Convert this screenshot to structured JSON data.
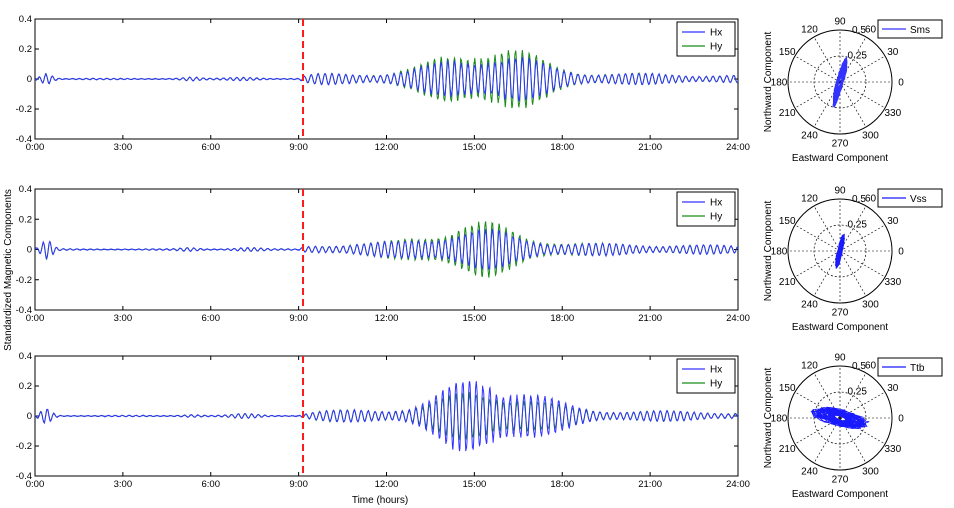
{
  "figure": {
    "ylabel": "Standardized Magnetic Components",
    "xlabel": "Time (hours)"
  },
  "chart_data": [
    {
      "type": "line",
      "panel": "time-series-1",
      "x_ticks": [
        "0:00",
        "3:00",
        "6:00",
        "9:00",
        "12:00",
        "15:00",
        "18:00",
        "21:00",
        "24:00"
      ],
      "xlim": [
        0,
        24
      ],
      "ylim": [
        -0.4,
        0.4
      ],
      "y_ticks": [
        "0.4",
        "0.2",
        "0",
        "-0.2",
        "-0.4"
      ],
      "legend": "top-right",
      "marker_hour": 9.15,
      "marker_color": "#ff1a1a",
      "series": [
        {
          "name": "Hx",
          "color": "#3333ff",
          "peak_amplitude": 0.15,
          "peak_hour": 15.5
        },
        {
          "name": "Hy",
          "color": "#1a8c1a",
          "peak_amplitude": 0.22,
          "peak_hour": 15.5
        }
      ]
    },
    {
      "type": "line",
      "panel": "time-series-2",
      "x_ticks": [
        "0:00",
        "3:00",
        "6:00",
        "9:00",
        "12:00",
        "15:00",
        "18:00",
        "21:00",
        "24:00"
      ],
      "xlim": [
        0,
        24
      ],
      "ylim": [
        -0.4,
        0.4
      ],
      "y_ticks": [
        "0.4",
        "0.2",
        "0",
        "-0.2",
        "-0.4"
      ],
      "legend": "top-right",
      "marker_hour": 9.15,
      "marker_color": "#ff1a1a",
      "series": [
        {
          "name": "Hx",
          "color": "#3333ff",
          "peak_amplitude": 0.1,
          "peak_hour": 15.0
        },
        {
          "name": "Hy",
          "color": "#1a8c1a",
          "peak_amplitude": 0.15,
          "peak_hour": 15.0
        }
      ]
    },
    {
      "type": "line",
      "panel": "time-series-3",
      "x_ticks": [
        "0:00",
        "3:00",
        "6:00",
        "9:00",
        "12:00",
        "15:00",
        "18:00",
        "21:00",
        "24:00"
      ],
      "xlim": [
        0,
        24
      ],
      "ylim": [
        -0.4,
        0.4
      ],
      "y_ticks": [
        "0.4",
        "0.2",
        "0",
        "-0.2",
        "-0.4"
      ],
      "legend": "top-right",
      "marker_hour": 9.15,
      "marker_color": "#ff1a1a",
      "xlabel": "Time (hours)",
      "series": [
        {
          "name": "Hx",
          "color": "#3333ff",
          "peak_amplitude": 0.25,
          "peak_hour": 15.5
        },
        {
          "name": "Hy",
          "color": "#1a8c1a",
          "peak_amplitude": 0.15,
          "peak_hour": 15.5
        }
      ]
    },
    {
      "type": "polar",
      "panel": "polar-1",
      "angle_labels": [
        "90",
        "60",
        "30",
        "0",
        "330",
        "300",
        "270",
        "240",
        "210",
        "180",
        "150",
        "120"
      ],
      "radial_labels": [
        "0.25",
        "0.5"
      ],
      "xlabel": "Eastward Component",
      "ylabel": "Northward Component",
      "legend": {
        "name": "Sms",
        "color": "#3333ff"
      },
      "orientation_deg": 70,
      "major_extent": 0.23,
      "minor_extent": 0.035
    },
    {
      "type": "polar",
      "panel": "polar-2",
      "angle_labels": [
        "90",
        "60",
        "30",
        "0",
        "330",
        "300",
        "270",
        "240",
        "210",
        "180",
        "150",
        "120"
      ],
      "radial_labels": [
        "0.25",
        "0.5"
      ],
      "xlabel": "Eastward Component",
      "ylabel": "Northward Component",
      "legend": {
        "name": "Vss",
        "color": "#1a1aff"
      },
      "orientation_deg": 72,
      "major_extent": 0.16,
      "minor_extent": 0.025
    },
    {
      "type": "polar",
      "panel": "polar-3",
      "angle_labels": [
        "90",
        "60",
        "30",
        "0",
        "330",
        "300",
        "270",
        "240",
        "210",
        "180",
        "150",
        "120"
      ],
      "radial_labels": [
        "0.25",
        "0.5"
      ],
      "xlabel": "Eastward Component",
      "ylabel": "Northward Component",
      "legend": {
        "name": "Ttb",
        "color": "#1a1aff"
      },
      "orientation_deg": -25,
      "major_extent": 0.26,
      "minor_extent": 0.08
    }
  ]
}
